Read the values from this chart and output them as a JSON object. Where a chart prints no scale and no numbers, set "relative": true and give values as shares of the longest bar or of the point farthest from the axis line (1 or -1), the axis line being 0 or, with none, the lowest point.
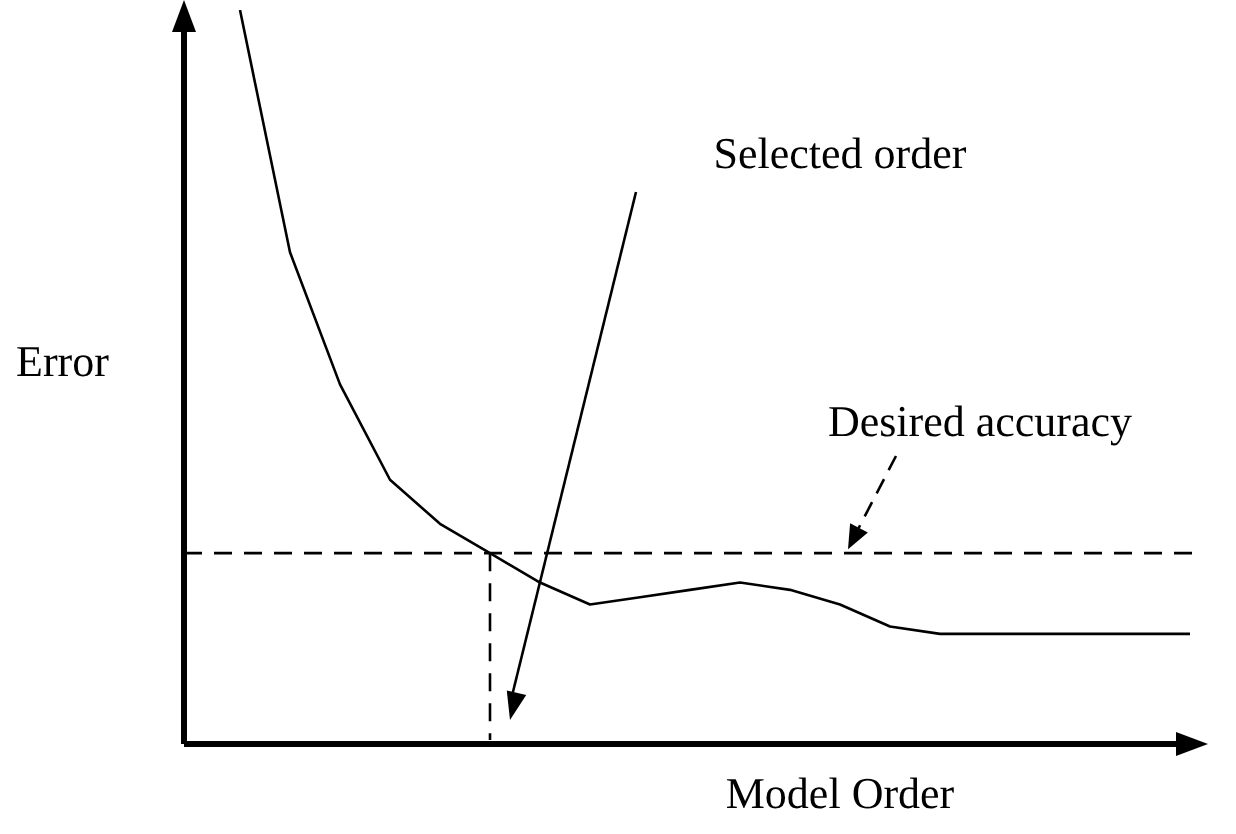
{
  "chart_data": {
    "type": "line",
    "relative": true,
    "xlabel": "Model Order",
    "ylabel": "Error",
    "categories": [
      null,
      null,
      null,
      null,
      null,
      null,
      null,
      null,
      null,
      null,
      null,
      null,
      null,
      null,
      null,
      null,
      null,
      null,
      null,
      null
    ],
    "series": [
      {
        "color": "#000000",
        "values": [
          1.0,
          0.67,
          0.49,
          0.36,
          0.3,
          0.26,
          0.22,
          0.19,
          0.2,
          0.21,
          0.22,
          0.21,
          0.19,
          0.16,
          0.15,
          0.15,
          0.15,
          0.15,
          0.15,
          0.15
        ]
      }
    ],
    "ref_lines": [
      {
        "axis": "y",
        "value": 0.26,
        "line_style": "dashed",
        "color": "#000000"
      }
    ],
    "annotations": [
      "Selected order",
      "Desired accuracy"
    ],
    "marker": "none",
    "line_style": "solid",
    "legend": false
  }
}
